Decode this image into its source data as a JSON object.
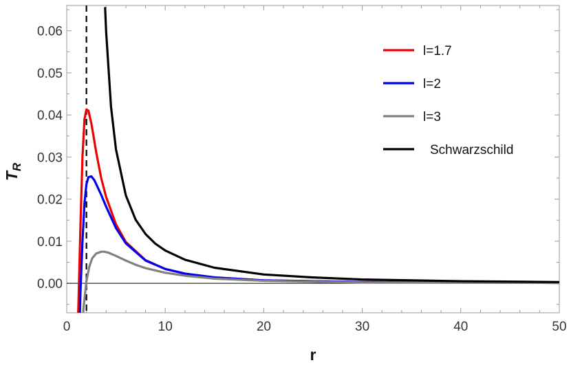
{
  "chart_data": {
    "type": "line",
    "xlabel": "r",
    "ylabel": "T",
    "ylabel_subscript": "R",
    "xlim": [
      0,
      50
    ],
    "ylim": [
      -0.007,
      0.066
    ],
    "x_ticks": [
      0,
      10,
      20,
      30,
      40,
      50
    ],
    "x_tick_labels": [
      "0",
      "10",
      "20",
      "30",
      "40",
      "50"
    ],
    "y_ticks": [
      0.0,
      0.01,
      0.02,
      0.03,
      0.04,
      0.05,
      0.06
    ],
    "y_tick_labels": [
      "0.00",
      "0.01",
      "0.02",
      "0.03",
      "0.04",
      "0.05",
      "0.06"
    ],
    "grid": false,
    "legend_position": "top-right",
    "reference_lines": [
      {
        "orientation": "vertical",
        "x": 2,
        "style": "dashed",
        "color": "#000000"
      },
      {
        "orientation": "horizontal",
        "y": 0,
        "style": "solid",
        "color": "#000000"
      }
    ],
    "series": [
      {
        "name": "l=1.7",
        "color": "#ee0000",
        "x": [
          1.0,
          1.2,
          1.4,
          1.6,
          1.8,
          2.0,
          2.2,
          2.5,
          3.0,
          3.5,
          4.0,
          5.0,
          6.0,
          8.0,
          10.0,
          12.0,
          15.0,
          20.0,
          30.0,
          50.0
        ],
        "y": [
          -0.02,
          -0.004,
          0.014,
          0.03,
          0.039,
          0.0413,
          0.041,
          0.038,
          0.031,
          0.025,
          0.0205,
          0.014,
          0.0098,
          0.0055,
          0.0034,
          0.0023,
          0.0014,
          0.0007,
          0.0003,
          0.0001
        ]
      },
      {
        "name": "l=2",
        "color": "#0000ee",
        "x": [
          1.2,
          1.4,
          1.6,
          1.8,
          2.0,
          2.2,
          2.5,
          2.8,
          3.0,
          3.5,
          4.0,
          5.0,
          6.0,
          8.0,
          10.0,
          12.0,
          15.0,
          20.0,
          30.0,
          50.0
        ],
        "y": [
          -0.02,
          -0.002,
          0.01,
          0.019,
          0.0235,
          0.0252,
          0.0254,
          0.0245,
          0.0235,
          0.021,
          0.0182,
          0.0131,
          0.0095,
          0.0054,
          0.0034,
          0.0023,
          0.0014,
          0.0007,
          0.0003,
          0.0001
        ]
      },
      {
        "name": "l=3",
        "color": "#808080",
        "x": [
          1.4,
          1.7,
          2.0,
          2.3,
          2.6,
          3.0,
          3.5,
          3.8,
          4.2,
          5.0,
          6.0,
          7.0,
          8.0,
          10.0,
          12.0,
          15.0,
          20.0,
          30.0,
          50.0
        ],
        "y": [
          -0.02,
          -0.006,
          0.0005,
          0.004,
          0.006,
          0.0071,
          0.0075,
          0.0075,
          0.0073,
          0.0065,
          0.0054,
          0.0044,
          0.0036,
          0.0025,
          0.0018,
          0.0011,
          0.0006,
          0.0002,
          0.0001
        ]
      },
      {
        "name": "Schwarzschild",
        "color": "#000000",
        "x": [
          3.9,
          4.0,
          4.5,
          5.0,
          6.0,
          7.0,
          8.0,
          9.0,
          10.0,
          12.0,
          15.0,
          20.0,
          25.0,
          30.0,
          40.0,
          50.0
        ],
        "y": [
          0.0654,
          0.0597,
          0.0419,
          0.0318,
          0.0209,
          0.0151,
          0.0117,
          0.0094,
          0.0078,
          0.0056,
          0.0037,
          0.0021,
          0.0014,
          0.0009,
          0.0005,
          0.0003
        ]
      }
    ]
  }
}
